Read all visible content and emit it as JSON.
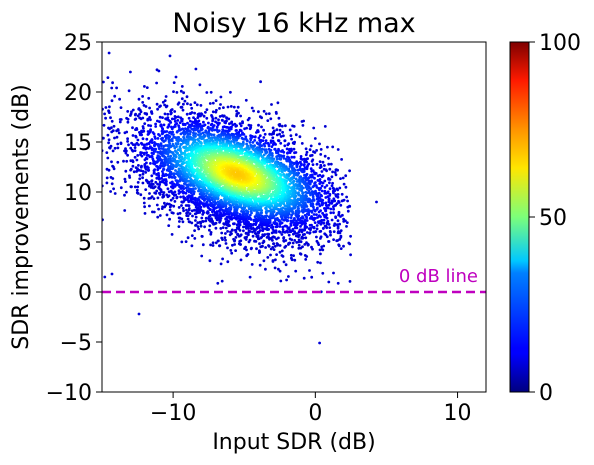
{
  "chart_data": {
    "type": "scatter",
    "title": "Noisy 16 kHz max",
    "xlabel": "Input SDR (dB)",
    "ylabel": "SDR improvements (dB)",
    "xlim": [
      -15,
      12
    ],
    "ylim": [
      -10,
      25
    ],
    "x_ticks": [
      -10,
      0,
      10
    ],
    "y_ticks": [
      -10,
      -5,
      0,
      5,
      10,
      15,
      20,
      25
    ],
    "grid": false,
    "color_scale": "jet (point density)",
    "colorbar": {
      "ticks": [
        0,
        50,
        100
      ],
      "range": [
        0,
        100
      ]
    },
    "reference_line": {
      "y": 0,
      "label": "0 dB line",
      "color": "#bf00bf",
      "style": "dashed"
    },
    "cloud_summary": {
      "approx_points": 6000,
      "density_peak": {
        "x": -5.5,
        "y": 11.8
      },
      "x_range_of_points": [
        -15,
        2.5
      ],
      "y_range_of_points": [
        -5,
        24
      ]
    },
    "outliers": [
      {
        "x": -14.5,
        "y": 23.9
      },
      {
        "x": -8.4,
        "y": 22.3
      },
      {
        "x": -13.0,
        "y": 22.0
      },
      {
        "x": 4.3,
        "y": 9.0
      },
      {
        "x": 0.3,
        "y": -5.1
      },
      {
        "x": -12.4,
        "y": -2.2
      },
      {
        "x": -14.9,
        "y": 21.0
      },
      {
        "x": -14.8,
        "y": 1.5
      },
      {
        "x": -14.3,
        "y": 1.8
      },
      {
        "x": -11.0,
        "y": 22.1
      },
      {
        "x": -9.8,
        "y": 21.5
      },
      {
        "x": 2.2,
        "y": 9.5
      }
    ]
  }
}
